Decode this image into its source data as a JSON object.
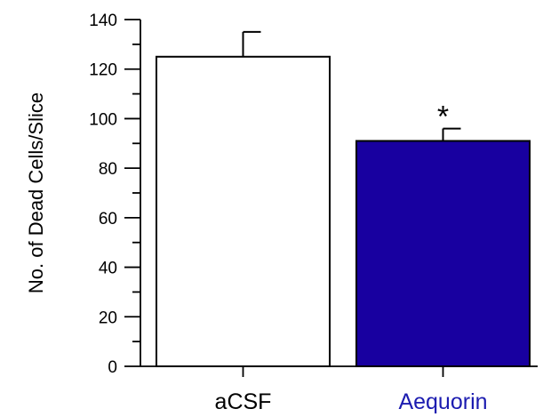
{
  "chart_data": {
    "type": "bar",
    "categories": [
      "aCSF",
      "Aequorin"
    ],
    "values": [
      125,
      91
    ],
    "errors": [
      10,
      5
    ],
    "bar_colors": [
      "#ffffff",
      "#1800a0"
    ],
    "category_label_colors": [
      "#000000",
      "#1c1cb0"
    ],
    "annotations": [
      "",
      "*"
    ],
    "title": "",
    "xlabel": "",
    "ylabel": "No. of Dead Cells/Slice",
    "ylim": [
      0,
      140
    ],
    "yticks": [
      0,
      20,
      40,
      60,
      80,
      100,
      120,
      140
    ],
    "ytick_labels": [
      "0",
      "20",
      "40",
      "60",
      "80",
      "100",
      "120",
      "140"
    ],
    "minor_ticks": true,
    "grid": false
  }
}
